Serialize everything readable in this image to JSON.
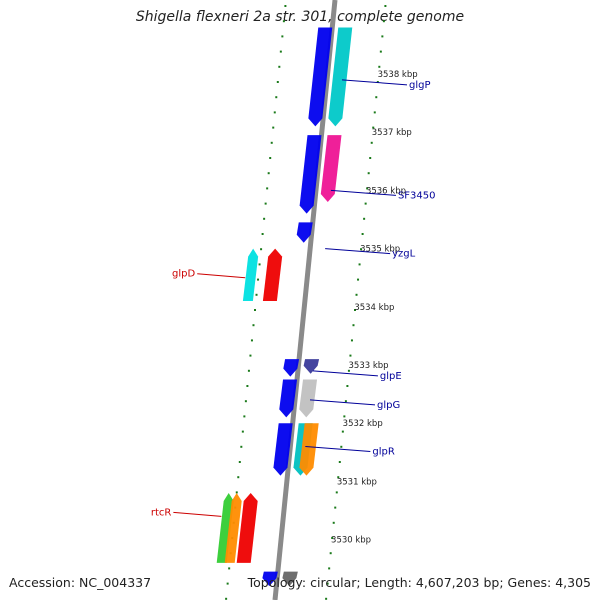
{
  "title": "Shigella flexneri 2a str. 301, complete genome",
  "footer": {
    "accession": "Accession: NC_004337",
    "summary": "Topology: circular; Length: 4,607,203 bp; Genes: 4,305"
  },
  "colors": {
    "backbone": "#8a8a8a",
    "tick": "#1a7a1a",
    "forward_label": "#cc0000",
    "reverse_label": "#000099",
    "kbp_label": "#222222"
  },
  "kbp_ticks": [
    {
      "kbp": 3538,
      "label": "3538 kbp"
    },
    {
      "kbp": 3537,
      "label": "3537 kbp"
    },
    {
      "kbp": 3536,
      "label": "3536 kbp"
    },
    {
      "kbp": 3535,
      "label": "3535 kbp"
    },
    {
      "kbp": 3534,
      "label": "3534 kbp"
    },
    {
      "kbp": 3533,
      "label": "3533 kbp"
    },
    {
      "kbp": 3532,
      "label": "3532 kbp"
    },
    {
      "kbp": 3531,
      "label": "3531 kbp"
    },
    {
      "kbp": 3530,
      "label": "3530 kbp"
    }
  ],
  "gene_labels": {
    "reverse": [
      {
        "name": "glgP",
        "kbp": 3537.9
      },
      {
        "name": "SF3450",
        "kbp": 3536.0
      },
      {
        "name": "yzgL",
        "kbp": 3535.0
      },
      {
        "name": "glpE",
        "kbp": 3532.9
      },
      {
        "name": "glpG",
        "kbp": 3532.4
      },
      {
        "name": "glpR",
        "kbp": 3531.6
      }
    ],
    "forward": [
      {
        "name": "glpD",
        "kbp": 3534.5
      },
      {
        "name": "rtcR",
        "kbp": 3530.4
      }
    ]
  },
  "features": [
    {
      "strand": "reverse",
      "track": "outer",
      "kbp_start": 3538.8,
      "kbp_end": 3537.1,
      "color": "#0000ee"
    },
    {
      "strand": "reverse",
      "track": "middle",
      "kbp_start": 3538.8,
      "kbp_end": 3537.1,
      "color": "#00c8c8"
    },
    {
      "strand": "reverse",
      "track": "outer",
      "kbp_start": 3536.95,
      "kbp_end": 3535.6,
      "color": "#0000ee"
    },
    {
      "strand": "reverse",
      "track": "middle",
      "kbp_start": 3536.95,
      "kbp_end": 3535.8,
      "color": "#ee1493"
    },
    {
      "strand": "reverse",
      "track": "outer",
      "kbp_start": 3535.45,
      "kbp_end": 3535.1,
      "color": "#0000ee"
    },
    {
      "strand": "forward",
      "track": "outer",
      "kbp_start": 3534.1,
      "kbp_end": 3535.0,
      "color": "#00e0e0"
    },
    {
      "strand": "forward",
      "track": "inner",
      "kbp_start": 3534.1,
      "kbp_end": 3535.0,
      "color": "#ee0000"
    },
    {
      "strand": "reverse",
      "track": "outer",
      "kbp_start": 3533.1,
      "kbp_end": 3532.8,
      "color": "#0000ee"
    },
    {
      "strand": "reverse",
      "track": "middle",
      "kbp_start": 3533.1,
      "kbp_end": 3532.85,
      "color": "#3a3a9a"
    },
    {
      "strand": "reverse",
      "track": "outer",
      "kbp_start": 3532.75,
      "kbp_end": 3532.1,
      "color": "#0000ee"
    },
    {
      "strand": "reverse",
      "track": "middle",
      "kbp_start": 3532.75,
      "kbp_end": 3532.1,
      "color": "#c0c0c0"
    },
    {
      "strand": "reverse",
      "track": "outer",
      "kbp_start": 3532.0,
      "kbp_end": 3531.1,
      "color": "#0000ee"
    },
    {
      "strand": "reverse",
      "track": "middle",
      "kbp_start": 3532.0,
      "kbp_end": 3531.1,
      "color": "#00c0c0"
    },
    {
      "strand": "reverse",
      "track": "middle2",
      "kbp_start": 3532.0,
      "kbp_end": 3531.1,
      "color": "#ff8c00"
    },
    {
      "strand": "forward",
      "track": "outer",
      "kbp_start": 3530.8,
      "kbp_end": 3529.6,
      "color": "#33cc33"
    },
    {
      "strand": "forward",
      "track": "outer2",
      "kbp_start": 3530.8,
      "kbp_end": 3529.6,
      "color": "#ff8c00"
    },
    {
      "strand": "forward",
      "track": "inner",
      "kbp_start": 3530.8,
      "kbp_end": 3529.6,
      "color": "#ee0000"
    },
    {
      "strand": "reverse",
      "track": "outer",
      "kbp_start": 3529.45,
      "kbp_end": 3529.2,
      "color": "#0000ee"
    },
    {
      "strand": "reverse",
      "track": "middle",
      "kbp_start": 3529.45,
      "kbp_end": 3529.2,
      "color": "#666666"
    }
  ]
}
